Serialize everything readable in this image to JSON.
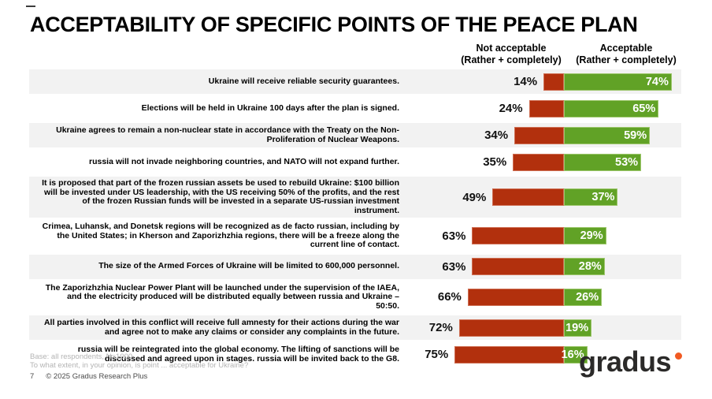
{
  "title": "ACCEPTABILITY OF SPECIFIC POINTS OF THE PEACE PLAN",
  "headers": {
    "not_acceptable": {
      "line1": "Not acceptable",
      "line2": "(Rather + completely)"
    },
    "acceptable": {
      "line1": "Acceptable",
      "line2": "(Rather + completely)"
    }
  },
  "chart_data": {
    "type": "bar",
    "orientation": "horizontal",
    "diverging": true,
    "title": "ACCEPTABILITY OF SPECIFIC POINTS OF THE PEACE PLAN",
    "value_suffix": "%",
    "xlim": [
      0,
      80
    ],
    "grid": false,
    "legend_position": "top",
    "categories": [
      "Ukraine will receive reliable security guarantees.",
      "Elections will be held in Ukraine 100 days after the plan is signed.",
      "Ukraine agrees to remain a non-nuclear state in accordance with the Treaty on the Non-Proliferation of Nuclear Weapons.",
      "russia will not invade neighboring countries, and NATO will not expand further.",
      "It is proposed that part of the frozen russian assets be used to rebuild Ukraine: $100 billion will be invested under US leadership, with the US receiving 50% of the profits, and the rest of the frozen Russian funds will be invested in a separate US-russian investment instrument.",
      "Crimea, Luhansk, and Donetsk regions will be recognized as de facto russian, including by the United States; in Kherson and Zaporizhzhia regions, there will be a freeze along the current line of contact.",
      "The size of the Armed Forces of Ukraine will be limited to 600,000 personnel.",
      "The Zaporizhzhia Nuclear Power Plant will be launched under the supervision of the IAEA, and the electricity produced will be distributed equally between russia and Ukraine – 50:50.",
      "All parties involved in this conflict will receive full amnesty for their actions during the war and agree not to make any claims or consider any complaints in the future.",
      "russia will be reintegrated into the global economy. The lifting of sanctions will be discussed and agreed upon in stages. russia will be invited back to the G8."
    ],
    "series": [
      {
        "name": "Not acceptable (Rather + completely)",
        "color": "#b2300d",
        "values": [
          14,
          24,
          34,
          35,
          49,
          63,
          63,
          66,
          72,
          75
        ]
      },
      {
        "name": "Acceptable (Rather + completely)",
        "color": "#61a226",
        "values": [
          74,
          65,
          59,
          53,
          37,
          29,
          28,
          26,
          19,
          16
        ]
      }
    ]
  },
  "footer": {
    "base_note": "Base: all respondents, N=1000",
    "question": "To what extent, in your opinion, is point ... acceptable for Ukraine?",
    "page_number": "7",
    "copyright": "© 2025 Gradus Research Plus",
    "logo_text": "gradus"
  },
  "colors": {
    "not_acceptable_bar": "#b2300d",
    "acceptable_bar": "#61a226",
    "row_band": "#f2f2f2",
    "logo_dot": "#f15a22"
  }
}
